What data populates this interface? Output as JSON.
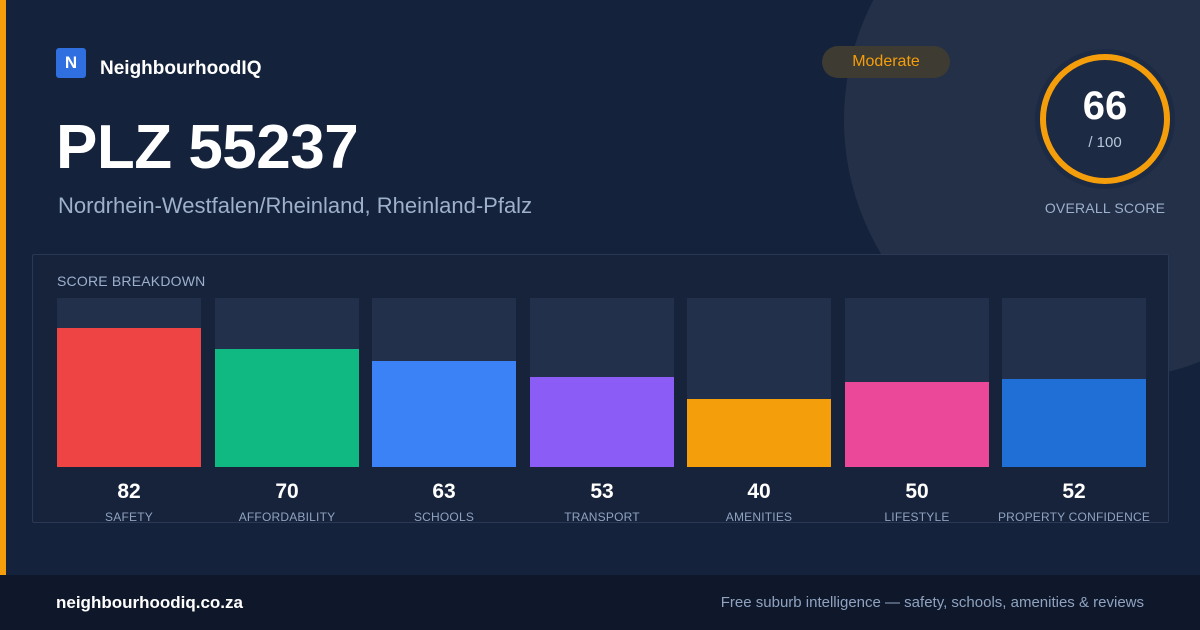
{
  "brand": {
    "logo_letter": "N",
    "name": "NeighbourhoodIQ",
    "logo_color": "#2f6fe0"
  },
  "badge": {
    "label": "Moderate",
    "color": "#f59e0b"
  },
  "header": {
    "title": "PLZ 55237",
    "subtitle": "Nordrhein-Westfalen/Rheinland, Rheinland-Pfalz"
  },
  "overall": {
    "score": "66",
    "max_label": "/ 100",
    "label": "OVERALL SCORE",
    "fraction": 0.66,
    "ring_color": "#f59e0b"
  },
  "breakdown": {
    "title": "SCORE BREAKDOWN",
    "items": [
      {
        "label": "SAFETY",
        "value": "82",
        "fill": 0.82,
        "color": "#ef4444"
      },
      {
        "label": "AFFORDABILITY",
        "value": "70",
        "fill": 0.7,
        "color": "#10b981"
      },
      {
        "label": "SCHOOLS",
        "value": "63",
        "fill": 0.63,
        "color": "#3b82f6"
      },
      {
        "label": "TRANSPORT",
        "value": "53",
        "fill": 0.53,
        "color": "#8b5cf6"
      },
      {
        "label": "AMENITIES",
        "value": "40",
        "fill": 0.4,
        "color": "#f59e0b"
      },
      {
        "label": "LIFESTYLE",
        "value": "50",
        "fill": 0.5,
        "color": "#ec4899"
      },
      {
        "label": "PROPERTY CONFIDENCE",
        "value": "52",
        "fill": 0.52,
        "color": "#1f6fd6"
      }
    ]
  },
  "footer": {
    "url": "neighbourhoodiq.co.za",
    "tagline": "Free suburb intelligence — safety, schools, amenities & reviews"
  }
}
